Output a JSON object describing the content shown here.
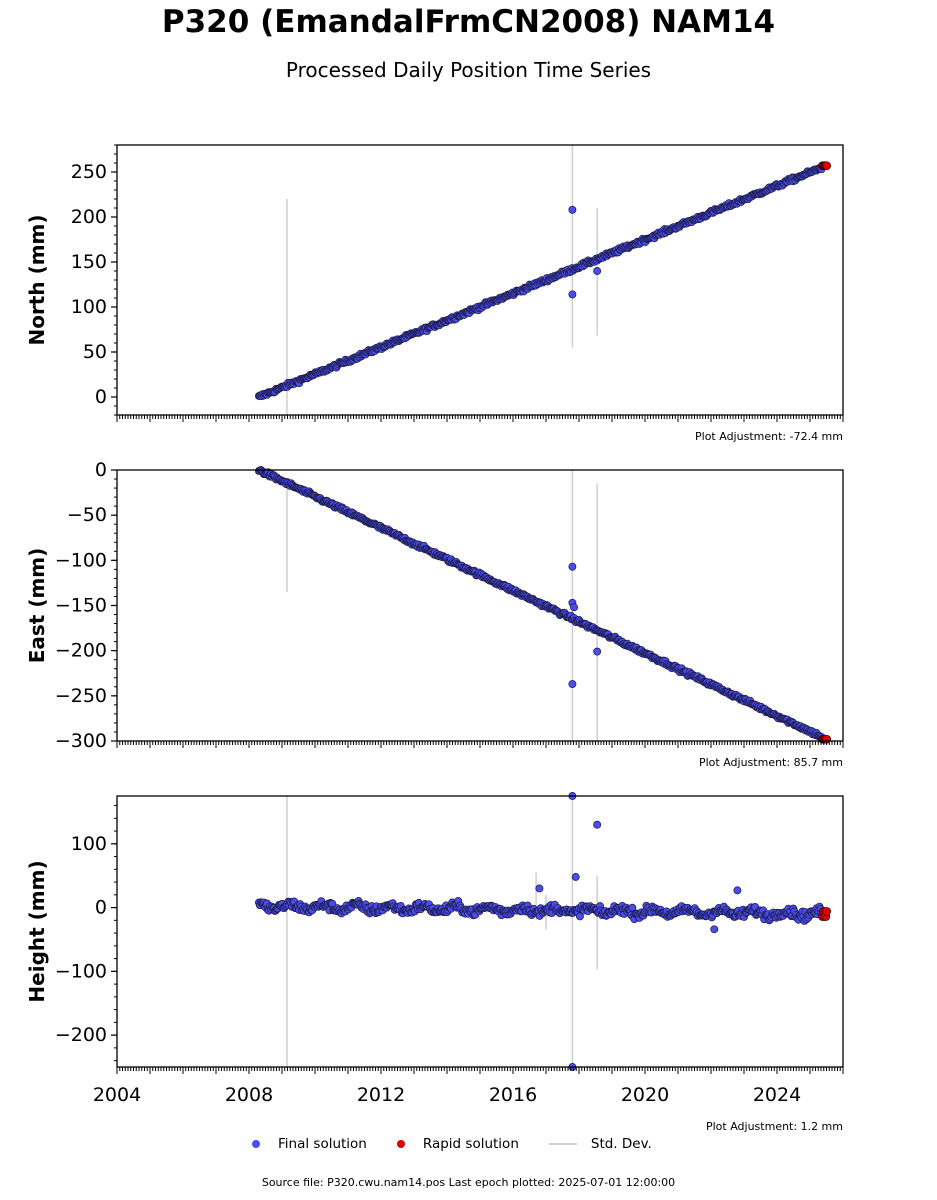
{
  "header": {
    "title": "P320 (EmandalFrmCN2008) NAM14",
    "subtitle": "Processed Daily Position Time Series"
  },
  "legend": {
    "final_label": "Final solution",
    "rapid_label": "Rapid solution",
    "std_label": "Std. Dev.",
    "final_color": "#4b4bf0",
    "rapid_color": "#e00000",
    "std_color": "#cfcfcf"
  },
  "footer": {
    "text": "Source file: P320.cwu.nam14.pos  Last epoch plotted: 2025-07-01 12:00:00"
  },
  "chart_data": [
    {
      "type": "scatter",
      "ylabel": "North (mm)",
      "xlim": [
        2004,
        2026
      ],
      "ylim": [
        -20,
        280
      ],
      "yticks": [
        0,
        50,
        100,
        150,
        200,
        250
      ],
      "adjustment": "Plot Adjustment: -72.4 mm",
      "trend": {
        "x_start": 2008.3,
        "y_start": 0,
        "x_end": 2025.5,
        "y_end": 257
      },
      "outliers": [
        {
          "x": 2017.8,
          "y": 208
        },
        {
          "x": 2017.8,
          "y": 114
        },
        {
          "x": 2018.55,
          "y": 140
        }
      ],
      "error_bars": [
        {
          "x": 2009.15,
          "y_low": -20,
          "y_high": 220
        },
        {
          "x": 2017.8,
          "y_low": 55,
          "y_high": 280
        },
        {
          "x": 2018.55,
          "y_low": 68,
          "y_high": 210
        }
      ]
    },
    {
      "type": "scatter",
      "ylabel": "East (mm)",
      "xlim": [
        2004,
        2026
      ],
      "ylim": [
        -300,
        0
      ],
      "yticks": [
        0,
        -50,
        -100,
        -150,
        -200,
        -250,
        -300
      ],
      "adjustment": "Plot Adjustment: 85.7 mm",
      "trend": {
        "x_start": 2008.3,
        "y_start": 0,
        "x_end": 2025.5,
        "y_end": -298
      },
      "outliers": [
        {
          "x": 2017.8,
          "y": -107
        },
        {
          "x": 2017.8,
          "y": -147
        },
        {
          "x": 2017.85,
          "y": -152
        },
        {
          "x": 2017.8,
          "y": -237
        },
        {
          "x": 2018.55,
          "y": -201
        }
      ],
      "error_bars": [
        {
          "x": 2009.15,
          "y_low": -135,
          "y_high": -20
        },
        {
          "x": 2017.8,
          "y_low": -300,
          "y_high": 0
        },
        {
          "x": 2018.55,
          "y_low": -300,
          "y_high": -15
        }
      ]
    },
    {
      "type": "scatter",
      "ylabel": "Height (mm)",
      "xlim": [
        2004,
        2026
      ],
      "ylim": [
        -250,
        175
      ],
      "yticks": [
        100,
        0,
        -100,
        -200
      ],
      "xticks": [
        2004,
        2008,
        2012,
        2016,
        2020,
        2024
      ],
      "adjustment": "Plot Adjustment: 1.2 mm",
      "trend": {
        "x_start": 2008.3,
        "y_start": 2,
        "x_end": 2025.5,
        "y_end": -10
      },
      "outliers": [
        {
          "x": 2017.8,
          "y": 175
        },
        {
          "x": 2017.9,
          "y": 48
        },
        {
          "x": 2018.55,
          "y": 130
        },
        {
          "x": 2016.8,
          "y": 30
        },
        {
          "x": 2022.8,
          "y": 27
        },
        {
          "x": 2022.1,
          "y": -34
        },
        {
          "x": 2017.8,
          "y": -250
        }
      ],
      "error_bars": [
        {
          "x": 2009.15,
          "y_low": -250,
          "y_high": 175
        },
        {
          "x": 2017.8,
          "y_low": -250,
          "y_high": 175
        },
        {
          "x": 2018.55,
          "y_low": -97,
          "y_high": 50
        },
        {
          "x": 2016.7,
          "y_low": -20,
          "y_high": 55
        },
        {
          "x": 2017.0,
          "y_low": -35,
          "y_high": 20
        }
      ]
    }
  ]
}
